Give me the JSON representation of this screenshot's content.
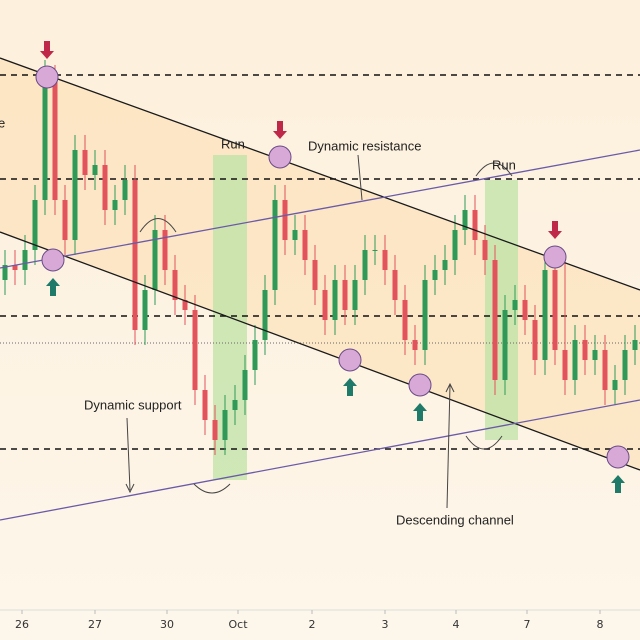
{
  "chart_data": {
    "type": "candlestick",
    "xlim": [
      -0.5,
      63.5
    ],
    "ylim": [
      0,
      640
    ],
    "xticks": [
      {
        "value": 1.7,
        "label": "26"
      },
      {
        "value": 9,
        "label": "27"
      },
      {
        "value": 16.2,
        "label": "30"
      },
      {
        "value": 23.3,
        "label": "Oct"
      },
      {
        "value": 30.7,
        "label": "2"
      },
      {
        "value": 38,
        "label": "3"
      },
      {
        "value": 45.1,
        "label": "4"
      },
      {
        "value": 52.2,
        "label": "7"
      },
      {
        "value": 59.5,
        "label": "8"
      }
    ],
    "up_color": "#2f9a57",
    "down_color": "#e2535c",
    "open": [
      360,
      375,
      370,
      390,
      440,
      560,
      440,
      400,
      490,
      465,
      475,
      430,
      440,
      460,
      310,
      350,
      410,
      370,
      340,
      330,
      250,
      220,
      200,
      230,
      240,
      270,
      300,
      350,
      440,
      400,
      410,
      380,
      350,
      320,
      360,
      330,
      360,
      390,
      390,
      370,
      340,
      300,
      290,
      360,
      370,
      380,
      410,
      430,
      400,
      380,
      260,
      330,
      340,
      320,
      280,
      370,
      290,
      260,
      300,
      280,
      290,
      250,
      260,
      290
    ],
    "high": [
      390,
      390,
      405,
      455,
      580,
      575,
      455,
      505,
      505,
      490,
      490,
      455,
      475,
      475,
      365,
      425,
      425,
      385,
      355,
      345,
      265,
      235,
      245,
      255,
      285,
      315,
      365,
      455,
      455,
      425,
      425,
      395,
      365,
      375,
      375,
      375,
      405,
      405,
      405,
      385,
      355,
      315,
      375,
      385,
      395,
      425,
      445,
      445,
      415,
      395,
      345,
      355,
      355,
      335,
      385,
      385,
      385,
      315,
      315,
      305,
      305,
      275,
      305,
      315
    ],
    "low": [
      345,
      355,
      355,
      375,
      425,
      425,
      385,
      385,
      450,
      450,
      415,
      415,
      425,
      295,
      295,
      335,
      355,
      325,
      315,
      235,
      205,
      185,
      185,
      215,
      225,
      255,
      285,
      335,
      385,
      385,
      365,
      335,
      305,
      305,
      315,
      315,
      345,
      375,
      355,
      325,
      285,
      275,
      275,
      345,
      355,
      365,
      395,
      385,
      365,
      245,
      245,
      315,
      305,
      265,
      265,
      275,
      245,
      245,
      265,
      265,
      235,
      235,
      245,
      275
    ],
    "close": [
      375,
      370,
      390,
      440,
      560,
      440,
      400,
      490,
      465,
      475,
      430,
      440,
      460,
      310,
      350,
      410,
      370,
      340,
      330,
      250,
      220,
      200,
      230,
      240,
      270,
      300,
      350,
      440,
      400,
      410,
      380,
      350,
      320,
      360,
      330,
      360,
      390,
      390,
      370,
      340,
      300,
      290,
      360,
      370,
      380,
      410,
      430,
      400,
      380,
      260,
      330,
      340,
      320,
      280,
      370,
      290,
      260,
      300,
      280,
      290,
      250,
      260,
      290,
      300
    ],
    "levels": [
      565,
      461,
      324,
      191
    ],
    "midline": 297,
    "trendlines": [
      {
        "from": [
          -0.5,
          582
        ],
        "to": [
          63.5,
          350
        ],
        "color": "#1a1a1a"
      },
      {
        "from": [
          -0.5,
          408
        ],
        "to": [
          63.5,
          170
        ],
        "color": "#1a1a1a"
      },
      {
        "from": [
          -0.5,
          372
        ],
        "to": [
          63.5,
          490
        ],
        "color": "#6a5aa8"
      },
      {
        "from": [
          -0.5,
          120
        ],
        "to": [
          63.5,
          240
        ],
        "color": "#6a5aa8"
      }
    ],
    "markers": [
      {
        "x": 4.2,
        "y": 563,
        "signal": "down"
      },
      {
        "x": 4.8,
        "y": 380,
        "signal": "up"
      },
      {
        "x": 27.5,
        "y": 483,
        "signal": "down"
      },
      {
        "x": 34.5,
        "y": 280,
        "signal": "up"
      },
      {
        "x": 41.5,
        "y": 255,
        "signal": "up"
      },
      {
        "x": 55,
        "y": 383,
        "signal": "down"
      },
      {
        "x": 61.3,
        "y": 183,
        "signal": "up"
      }
    ],
    "annotations": [
      "Dynamic resistance",
      "Dynamic support",
      "Descending channel",
      "Run",
      "Run",
      "e"
    ]
  }
}
